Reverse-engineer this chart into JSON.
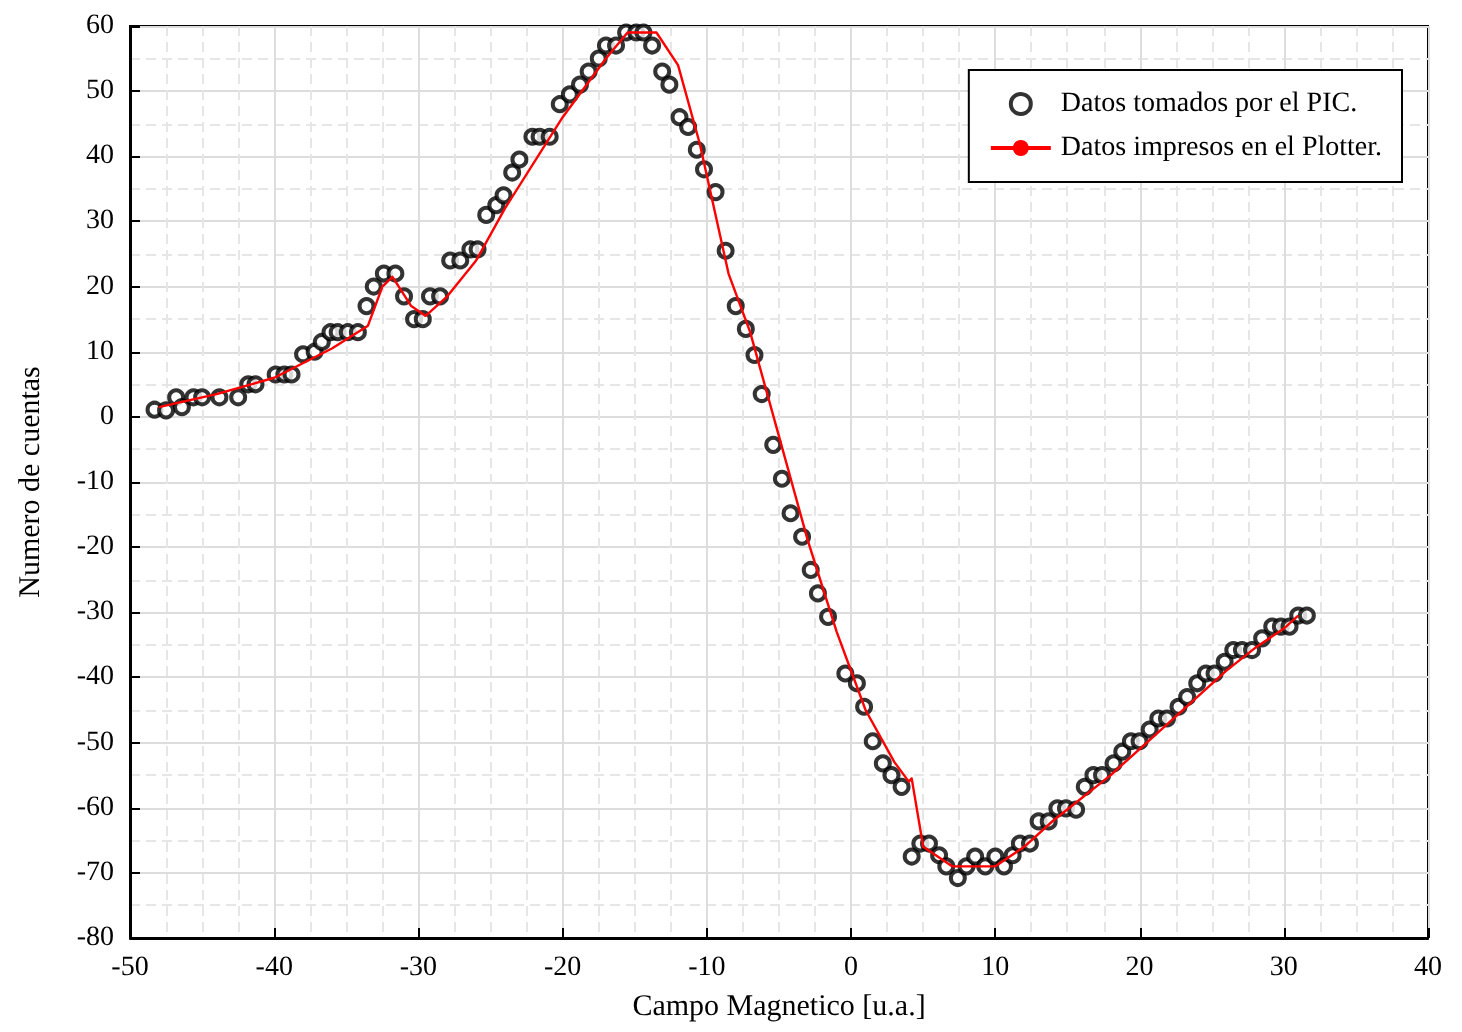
{
  "chart_data": {
    "type": "scatter",
    "xlabel": "Campo Magnetico [u.a.]",
    "ylabel": "Numero de cuentas",
    "xlim": [
      -50,
      40
    ],
    "xticks": [
      -50,
      -40,
      -30,
      -20,
      -10,
      0,
      10,
      20,
      30,
      40
    ],
    "ylim": [
      -80,
      60
    ],
    "yticks": [
      -80,
      -70,
      -60,
      -50,
      -40,
      -30,
      -20,
      -10,
      0,
      10,
      20,
      30,
      40,
      50,
      60
    ],
    "grid": true,
    "legend": "top right",
    "series": [
      {
        "name": "Datos tomados por el PIC.",
        "marker": "circle",
        "color": "#000000",
        "x": [
          -48.3,
          -47.5,
          -46.8,
          -46.4,
          -45.6,
          -45,
          -43.8,
          -42.5,
          -41.8,
          -41.3,
          -39.9,
          -39.3,
          -38.8,
          -38,
          -37.2,
          -36.7,
          -36.1,
          -35.6,
          -34.9,
          -34.2,
          -33.6,
          -33.1,
          -32.4,
          -31.6,
          -31,
          -30.3,
          -29.7,
          -29.2,
          -28.5,
          -27.8,
          -27.1,
          -26.4,
          -25.9,
          -25.3,
          -24.6,
          -24.1,
          -23.5,
          -23,
          -22.1,
          -21.6,
          -20.9,
          -20.2,
          -19.5,
          -18.8,
          -18.2,
          -17.5,
          -17,
          -16.3,
          -15.6,
          -14.9,
          -14.4,
          -13.8,
          -13.1,
          -12.6,
          -11.9,
          -11.3,
          -10.7,
          -10.2,
          -9.4,
          -8.7,
          -8,
          -7.3,
          -6.7,
          -6.2,
          -5.4,
          -4.8,
          -4.2,
          -3.4,
          -2.8,
          -2.3,
          -1.6,
          -0.4,
          0.4,
          0.9,
          1.5,
          2.2,
          2.8,
          3.5,
          4.2,
          4.8,
          5.4,
          6.1,
          6.6,
          7.4,
          8,
          8.6,
          9.3,
          10,
          10.6,
          11.2,
          11.7,
          12.4,
          13,
          13.7,
          14.3,
          14.9,
          15.6,
          16.2,
          16.8,
          17.4,
          18.2,
          18.8,
          19.4,
          20,
          20.7,
          21.3,
          21.9,
          22.7,
          23.3,
          24,
          24.6,
          25.2,
          25.9,
          26.5,
          27.1,
          27.8,
          28.5,
          29.2,
          29.8,
          30.4,
          31,
          31.6
        ],
        "values": [
          1.1,
          1,
          3,
          1.5,
          3,
          3,
          3,
          3,
          5,
          5,
          6.5,
          6.5,
          6.5,
          9.6,
          10,
          11.5,
          13,
          13,
          13,
          13,
          17,
          20,
          22,
          22,
          18.5,
          15,
          15,
          18.5,
          18.5,
          24,
          24,
          25.7,
          25.7,
          31,
          32.5,
          34,
          37.5,
          39.5,
          43,
          43,
          43,
          48,
          49.5,
          51,
          53,
          55,
          57,
          57,
          59,
          59,
          59,
          57,
          53,
          51,
          46,
          44.5,
          41,
          38,
          34.5,
          25.5,
          17,
          13.5,
          9.5,
          3.5,
          -4.3,
          -9.5,
          -14.8,
          -18.4,
          -23.5,
          -27.1,
          -30.7,
          -39.4,
          -40.9,
          -44.5,
          -49.8,
          -53.2,
          -55,
          -56.8,
          -67.5,
          -65.5,
          -65.5,
          -67.3,
          -69,
          -70.8,
          -69,
          -67.5,
          -69,
          -67.5,
          -69,
          -67.3,
          -65.5,
          -65.5,
          -62.1,
          -62.1,
          -60.1,
          -60.1,
          -60.3,
          -56.8,
          -55,
          -55,
          -53.2,
          -51.4,
          -49.8,
          -49.8,
          -48,
          -46.3,
          -46.3,
          -44.5,
          -43,
          -40.9,
          -39.4,
          -39.4,
          -37.6,
          -35.8,
          -35.8,
          -35.8,
          -34,
          -32.2,
          -32.2,
          -32.2,
          -30.5,
          -30.5
        ]
      },
      {
        "name": "Datos impresos en el Plotter.",
        "type": "line",
        "marker": "none",
        "line_style": "solid",
        "color": "#ff0000",
        "x": [
          -48,
          -44,
          -40,
          -36,
          -33.5,
          -32.5,
          -31.8,
          -30.5,
          -29.5,
          -28,
          -26,
          -24,
          -20,
          -17,
          -15.5,
          -13.5,
          -12,
          -10.5,
          -8.5,
          -7,
          -5,
          -3,
          -1,
          1,
          3,
          4,
          4.2,
          5,
          7,
          10,
          12,
          14,
          18,
          22,
          26,
          28,
          30,
          31
        ],
        "values": [
          1.5,
          3.5,
          6,
          10.5,
          14,
          20,
          21.5,
          17,
          15.5,
          18.5,
          24,
          32,
          46,
          55,
          59,
          59,
          54,
          42,
          22,
          13,
          -3,
          -19,
          -33,
          -45,
          -53,
          -56,
          -55.5,
          -66,
          -69,
          -69,
          -66,
          -62,
          -55,
          -47,
          -39,
          -35.5,
          -32.5,
          -30.5
        ]
      }
    ]
  }
}
